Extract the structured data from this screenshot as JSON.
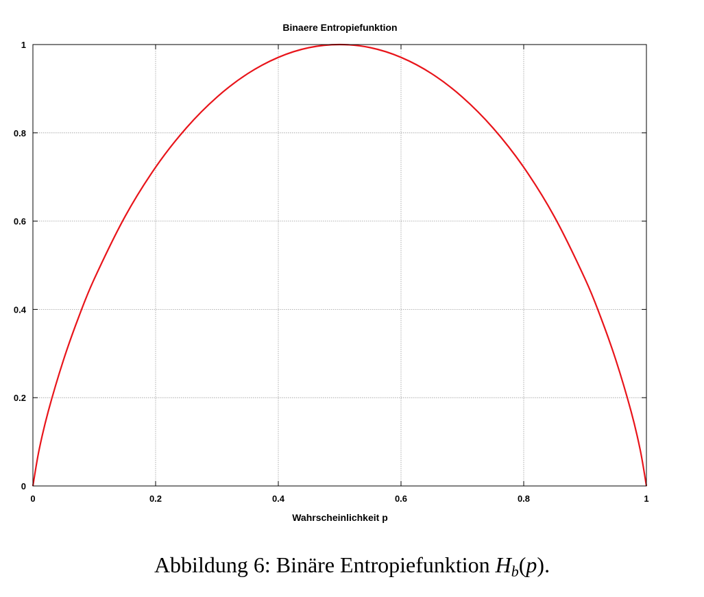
{
  "chart_data": {
    "type": "line",
    "title": "Binaere Entropiefunktion",
    "xlabel": "Wahrscheinlichkeit p",
    "ylabel": "",
    "xlim": [
      0,
      1
    ],
    "ylim": [
      0,
      1
    ],
    "grid": true,
    "xticks": [
      "0",
      "0.2",
      "0.4",
      "0.6",
      "0.8",
      "1"
    ],
    "yticks": [
      "0",
      "0.2",
      "0.4",
      "0.6",
      "0.8",
      "1"
    ],
    "series": [
      {
        "color": "#e8141a",
        "x": [
          0,
          0.01,
          0.025,
          0.05,
          0.075,
          0.1,
          0.15,
          0.2,
          0.25,
          0.3,
          0.35,
          0.4,
          0.45,
          0.5,
          0.55,
          0.6,
          0.65,
          0.7,
          0.75,
          0.8,
          0.85,
          0.9,
          0.925,
          0.95,
          0.975,
          0.99,
          1
        ],
        "y": [
          0,
          0.081,
          0.169,
          0.286,
          0.384,
          0.469,
          0.61,
          0.722,
          0.811,
          0.881,
          0.934,
          0.971,
          0.993,
          1,
          0.993,
          0.971,
          0.934,
          0.881,
          0.811,
          0.722,
          0.61,
          0.469,
          0.384,
          0.286,
          0.169,
          0.081,
          0
        ]
      }
    ]
  },
  "caption": {
    "prefix": "Abbildung 6: Binäre Entropiefunktion ",
    "func": "H",
    "sub": "b",
    "open": "(",
    "arg": "p",
    "close": ")."
  }
}
